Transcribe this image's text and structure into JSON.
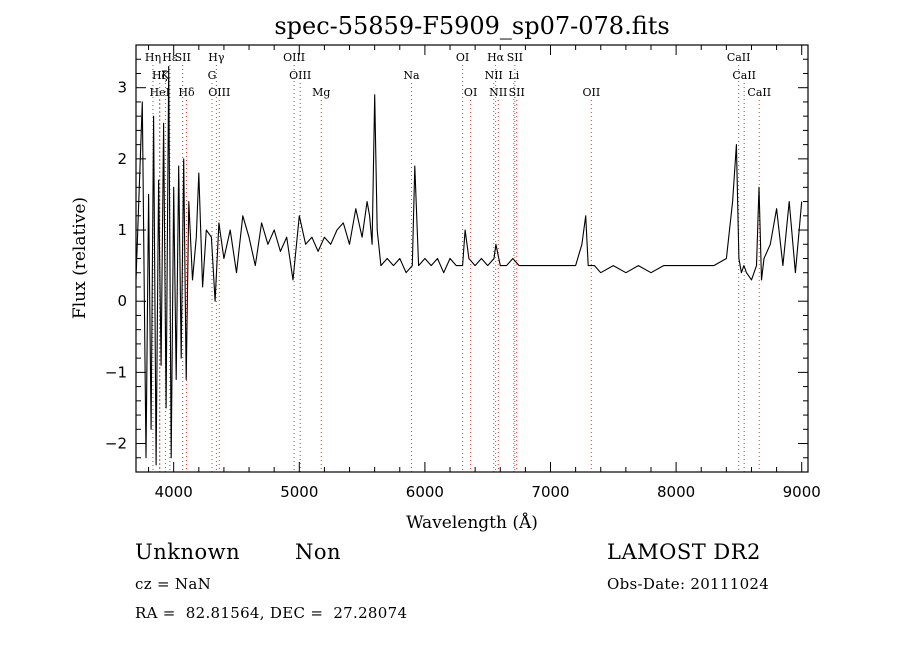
{
  "chart_data": {
    "type": "line",
    "title": "spec-55859-F5909_sp07-078.fits",
    "xlabel": "Wavelength (Å)",
    "ylabel": "Flux (relative)",
    "xlim": [
      3700,
      9050
    ],
    "ylim": [
      -2.4,
      3.6
    ],
    "xticks": [
      4000,
      5000,
      6000,
      7000,
      8000,
      9000
    ],
    "yticks": [
      -2,
      -1,
      0,
      1,
      2,
      3
    ],
    "grid": false,
    "series": [
      {
        "x": [
          3700,
          3750,
          3780,
          3800,
          3820,
          3840,
          3860,
          3880,
          3900,
          3920,
          3940,
          3960,
          3980,
          4000,
          4020,
          4040,
          4060,
          4080,
          4100,
          4120,
          4150,
          4180,
          4200,
          4230,
          4260,
          4300,
          4330,
          4360,
          4400,
          4450,
          4500,
          4550,
          4600,
          4650,
          4700,
          4750,
          4800,
          4850,
          4900,
          4950,
          5000,
          5050,
          5100,
          5150,
          5200,
          5250,
          5300,
          5350,
          5400,
          5450,
          5500,
          5540,
          5560,
          5580,
          5600,
          5620,
          5650,
          5700,
          5750,
          5800,
          5850,
          5900,
          5920,
          5950,
          6000,
          6050,
          6100,
          6150,
          6200,
          6250,
          6300,
          6320,
          6350,
          6400,
          6450,
          6500,
          6550,
          6565,
          6600,
          6650,
          6700,
          6750,
          6800,
          6900,
          7000,
          7100,
          7200,
          7250,
          7280,
          7300,
          7350,
          7400,
          7500,
          7600,
          7700,
          7800,
          7900,
          8000,
          8100,
          8200,
          8300,
          8400,
          8450,
          8480,
          8500,
          8520,
          8540,
          8560,
          8600,
          8640,
          8660,
          8680,
          8700,
          8750,
          8800,
          8850,
          8900,
          8950,
          9000
        ],
        "values": [
          0.3,
          2.8,
          -2.2,
          1.5,
          -1.8,
          2.6,
          -2.3,
          1.7,
          -0.9,
          2.5,
          -1.5,
          3.3,
          -2.2,
          1.6,
          -1.1,
          1.9,
          -0.8,
          2.0,
          -1.1,
          1.4,
          0.3,
          0.9,
          1.8,
          0.2,
          1.0,
          0.9,
          0.0,
          1.1,
          0.6,
          1.0,
          0.4,
          1.2,
          0.9,
          0.5,
          1.1,
          0.8,
          1.0,
          0.7,
          0.9,
          0.3,
          1.2,
          0.8,
          0.9,
          0.7,
          0.9,
          0.8,
          1.0,
          1.1,
          0.8,
          1.3,
          0.9,
          1.4,
          1.2,
          0.8,
          2.9,
          1.0,
          0.5,
          0.6,
          0.5,
          0.6,
          0.4,
          0.5,
          1.9,
          0.5,
          0.6,
          0.5,
          0.6,
          0.4,
          0.6,
          0.5,
          0.5,
          1.0,
          0.6,
          0.5,
          0.6,
          0.5,
          0.6,
          0.8,
          0.5,
          0.5,
          0.6,
          0.5,
          0.5,
          0.5,
          0.5,
          0.5,
          0.5,
          0.8,
          1.2,
          0.5,
          0.5,
          0.4,
          0.5,
          0.4,
          0.5,
          0.4,
          0.5,
          0.5,
          0.5,
          0.5,
          0.5,
          0.6,
          1.4,
          2.2,
          0.6,
          0.4,
          0.5,
          0.4,
          0.3,
          0.5,
          1.6,
          0.3,
          0.6,
          0.8,
          1.3,
          0.5,
          1.4,
          0.4,
          1.4
        ]
      }
    ],
    "line_markers": [
      {
        "label": "Hη",
        "x": 3835,
        "row": 1
      },
      {
        "label": "Hε",
        "x": 3970,
        "row": 1
      },
      {
        "label": "SII",
        "x": 4072,
        "row": 1
      },
      {
        "label": "Hγ",
        "x": 4340,
        "row": 1
      },
      {
        "label": "OIII",
        "x": 4959,
        "row": 1
      },
      {
        "label": "OI",
        "x": 6300,
        "row": 1
      },
      {
        "label": "Hα",
        "x": 6563,
        "row": 1
      },
      {
        "label": "SII",
        "x": 6716,
        "row": 1
      },
      {
        "label": "CaII",
        "x": 8498,
        "row": 1
      },
      {
        "label": "Hζ",
        "x": 3889,
        "row": 2
      },
      {
        "label": "K",
        "x": 3934,
        "row": 2
      },
      {
        "label": "G",
        "x": 4305,
        "row": 2
      },
      {
        "label": "OIII",
        "x": 5007,
        "row": 2
      },
      {
        "label": "Na",
        "x": 5893,
        "row": 2
      },
      {
        "label": "NII",
        "x": 6548,
        "row": 2
      },
      {
        "label": "Li",
        "x": 6708,
        "row": 2
      },
      {
        "label": "CaII",
        "x": 8542,
        "row": 2
      },
      {
        "label": "HeI",
        "x": 3889,
        "row": 3
      },
      {
        "label": "Hδ",
        "x": 4102,
        "row": 3
      },
      {
        "label": "OIII",
        "x": 4363,
        "row": 3
      },
      {
        "label": "Mg",
        "x": 5175,
        "row": 3
      },
      {
        "label": "OI",
        "x": 6364,
        "row": 3
      },
      {
        "label": "NII",
        "x": 6584,
        "row": 3
      },
      {
        "label": "SII",
        "x": 6731,
        "row": 3
      },
      {
        "label": "OII",
        "x": 7325,
        "row": 3
      },
      {
        "label": "CaII",
        "x": 8662,
        "row": 3
      }
    ]
  },
  "info": {
    "class_label": "Unknown",
    "subclass_label": "Non",
    "survey": "LAMOST DR2",
    "redshift": "cz = NaN",
    "obs_date": "Obs-Date: 20111024",
    "coords": "RA =  82.81564, DEC =  27.28074"
  },
  "colors": {
    "line": "#000000",
    "marker": "#e8332a",
    "axis": "#000000"
  }
}
